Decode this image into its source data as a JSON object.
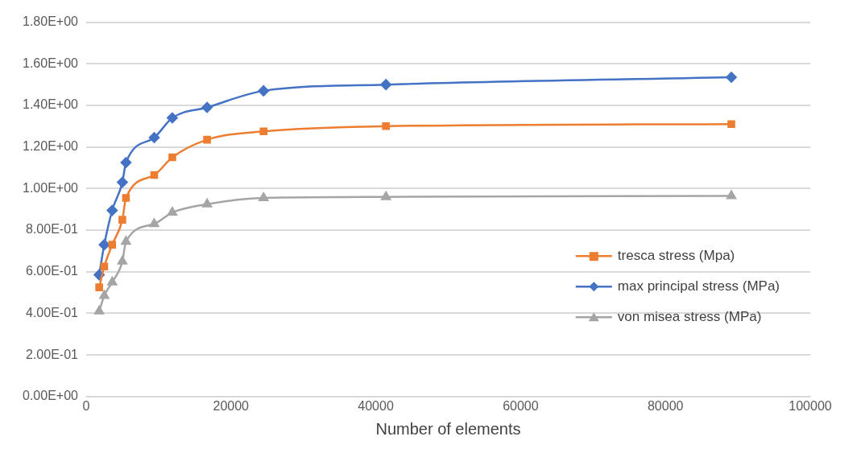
{
  "chart_data": {
    "type": "line",
    "xlabel": "Number of elements",
    "x": [
      1800,
      2500,
      3600,
      5000,
      5500,
      9400,
      11900,
      16700,
      24500,
      41400,
      89100
    ],
    "series": [
      {
        "name": "tresca stress (Mpa)",
        "color": "#ed7d31",
        "marker": "square",
        "values": [
          0.525,
          0.625,
          0.73,
          0.85,
          0.955,
          1.065,
          1.15,
          1.235,
          1.275,
          1.3,
          1.31
        ]
      },
      {
        "name": "max principal stress (MPa)",
        "color": "#4472c4",
        "marker": "diamond",
        "values": [
          0.585,
          0.73,
          0.895,
          1.03,
          1.125,
          1.245,
          1.34,
          1.39,
          1.47,
          1.5,
          1.535
        ]
      },
      {
        "name": "von misea stress (MPa)",
        "color": "#a5a5a5",
        "marker": "triangle",
        "values": [
          0.41,
          0.485,
          0.55,
          0.65,
          0.745,
          0.83,
          0.885,
          0.925,
          0.955,
          0.96,
          0.965
        ]
      }
    ],
    "xlim": [
      0,
      100000
    ],
    "xticks": [
      0,
      20000,
      40000,
      60000,
      80000,
      100000
    ],
    "ylim": [
      0,
      1.8
    ],
    "yticks": [
      {
        "value": 0,
        "label": "0.00E+00"
      },
      {
        "value": 0.2,
        "label": "2.00E-01"
      },
      {
        "value": 0.4,
        "label": "4.00E-01"
      },
      {
        "value": 0.6,
        "label": "6.00E-01"
      },
      {
        "value": 0.8,
        "label": "8.00E-01"
      },
      {
        "value": 1.0,
        "label": "1.00E+00"
      },
      {
        "value": 1.2,
        "label": "1.20E+00"
      },
      {
        "value": 1.4,
        "label": "1.40E+00"
      },
      {
        "value": 1.6,
        "label": "1.60E+00"
      },
      {
        "value": 1.8,
        "label": "1.80E+00"
      }
    ],
    "grid": "y",
    "legend": "right"
  }
}
